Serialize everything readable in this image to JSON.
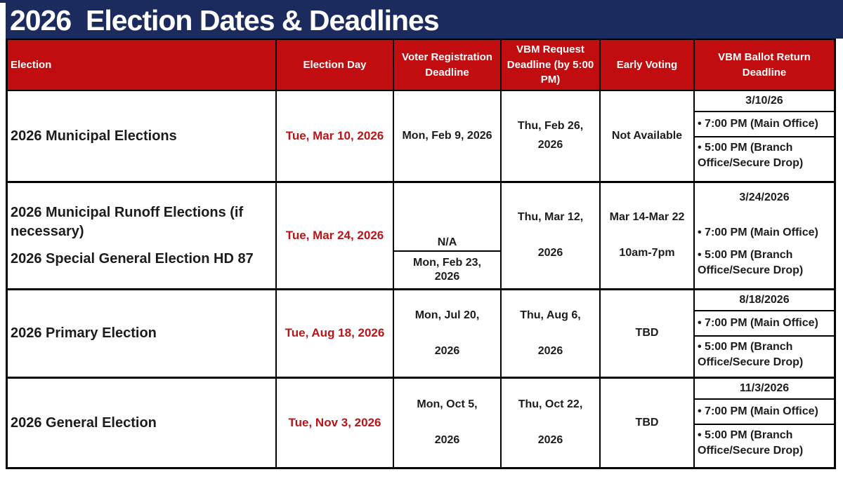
{
  "title": "2026  Election Dates & Deadlines",
  "colors": {
    "navy": "#1c2b5e",
    "header_red": "#c20d10",
    "date_red": "#bb1418",
    "border": "#000000",
    "text": "#1c1c1c"
  },
  "table": {
    "headers": {
      "election": "Election",
      "election_day": "Election Day",
      "voter_registration": "Voter Registration Deadline",
      "vbm_request": "VBM Request Deadline (by 5:00 PM)",
      "early_voting": "Early Voting",
      "vbm_return": "VBM Ballot Return Deadline"
    },
    "rows": [
      {
        "election_lines": [
          "2026 Municipal Elections"
        ],
        "election_day": "Tue, Mar 10, 2026",
        "voter_registration_lines": [
          "Mon, Feb 9, 2026"
        ],
        "vbm_request_lines": [
          "Thu, Feb 26,",
          "2026"
        ],
        "early_voting_lines": [
          "Not Available"
        ],
        "vbm_return": {
          "date": "3/10/26",
          "bullet_main": "• 7:00 PM (Main Office)",
          "bullet_branch": "• 5:00 PM (Branch Office/Secure Drop)"
        }
      },
      {
        "election_lines": [
          "2026 Municipal Runoff Elections (if necessary)",
          "2026 Special General Election HD 87"
        ],
        "election_day": "Tue, Mar 24, 2026",
        "voter_registration_top": "N/A",
        "voter_registration_lines": [
          "Mon, Feb 23,",
          "2026"
        ],
        "vbm_request_lines": [
          "Thu, Mar 12,",
          "2026"
        ],
        "early_voting_lines": [
          "Mar 14-Mar 22",
          "10am-7pm"
        ],
        "vbm_return": {
          "date": "3/24/2026",
          "bullet_main": "• 7:00 PM (Main Office)",
          "bullet_branch": "• 5:00 PM (Branch Office/Secure Drop)"
        }
      },
      {
        "election_lines": [
          "2026 Primary Election"
        ],
        "election_day": "Tue, Aug 18, 2026",
        "voter_registration_lines": [
          "Mon, Jul 20,",
          "2026"
        ],
        "vbm_request_lines": [
          "Thu, Aug 6,",
          "2026"
        ],
        "early_voting_lines": [
          "TBD"
        ],
        "vbm_return": {
          "date": "8/18/2026",
          "bullet_main": "• 7:00 PM (Main Office)",
          "bullet_branch": "• 5:00 PM (Branch Office/Secure Drop)"
        }
      },
      {
        "election_lines": [
          "2026 General Election"
        ],
        "election_day": "Tue, Nov 3, 2026",
        "voter_registration_lines": [
          "Mon, Oct 5,",
          "2026"
        ],
        "vbm_request_lines": [
          "Thu, Oct 22,",
          "2026"
        ],
        "early_voting_lines": [
          "TBD"
        ],
        "vbm_return": {
          "date": "11/3/2026",
          "bullet_main": "• 7:00 PM (Main Office)",
          "bullet_branch": "• 5:00 PM (Branch Office/Secure Drop)"
        }
      }
    ]
  }
}
